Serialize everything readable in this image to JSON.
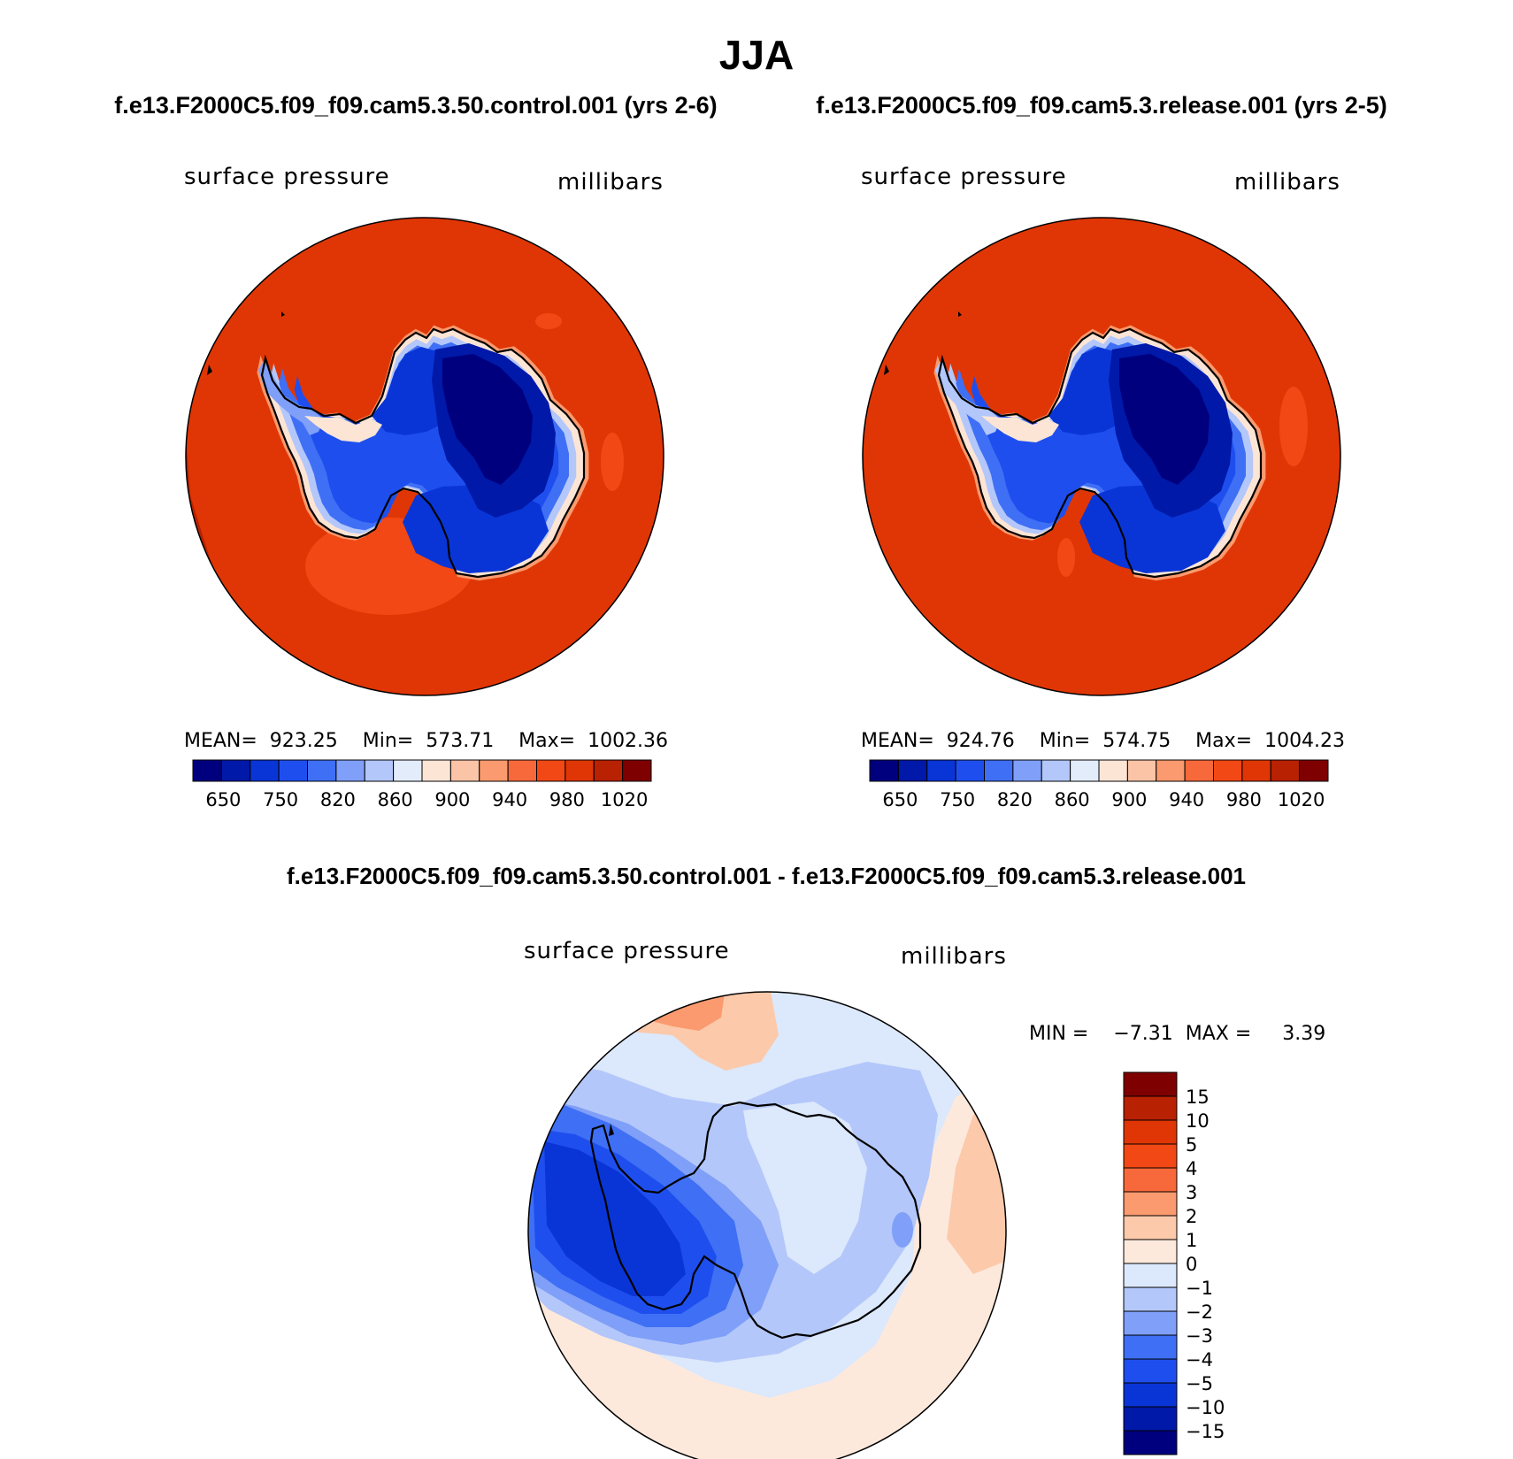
{
  "title": "JJA",
  "left_case_title": "f.e13.F2000C5.f09_f09.cam5.3.50.control.001 (yrs 2-6)",
  "right_case_title": "f.e13.F2000C5.f09_f09.cam5.3.release.001 (yrs 2-5)",
  "diff_title": "f.e13.F2000C5.f09_f09.cam5.3.50.control.001 - f.e13.F2000C5.f09_f09.cam5.3.release.001",
  "colors": {
    "abs_palette": [
      "#00007f",
      "#0019a8",
      "#0a35d6",
      "#1e4fee",
      "#3f6ff5",
      "#7f9ff8",
      "#b3c7fa",
      "#e3ecfb",
      "#fde5d6",
      "#fcc4a7",
      "#fa9a6e",
      "#f7683a",
      "#f24815",
      "#e03605",
      "#b82102",
      "#7f0000"
    ],
    "diff_palette": [
      "#00007f",
      "#0019a8",
      "#0a35d6",
      "#1e4fee",
      "#3f6ff5",
      "#7f9ff8",
      "#b3c7fa",
      "#dce8fb",
      "#fde9dc",
      "#fcc9aa",
      "#fa9a6e",
      "#f7683a",
      "#f24815",
      "#e03605",
      "#b82102",
      "#7f0000"
    ]
  },
  "panels": {
    "left": {
      "var_label": "surface pressure",
      "units_label": "millibars",
      "stats": "MEAN=  923.25    Min=  573.71    Max=  1002.36",
      "colorbar_labels": [
        "650",
        "750",
        "820",
        "860",
        "900",
        "940",
        "980",
        "1020"
      ]
    },
    "right": {
      "var_label": "surface pressure",
      "units_label": "millibars",
      "stats": "MEAN=  924.76    Min=  574.75    Max=  1004.23",
      "colorbar_labels": [
        "650",
        "750",
        "820",
        "860",
        "900",
        "940",
        "980",
        "1020"
      ]
    },
    "diff": {
      "var_label": "surface pressure",
      "units_label": "millibars",
      "minmax": "MIN =    −7.31  MAX =     3.39",
      "colorbar_labels": [
        "15",
        "10",
        "5",
        "4",
        "3",
        "2",
        "1",
        "0",
        "−1",
        "−2",
        "−3",
        "−4",
        "−5",
        "−10",
        "−15"
      ]
    }
  }
}
